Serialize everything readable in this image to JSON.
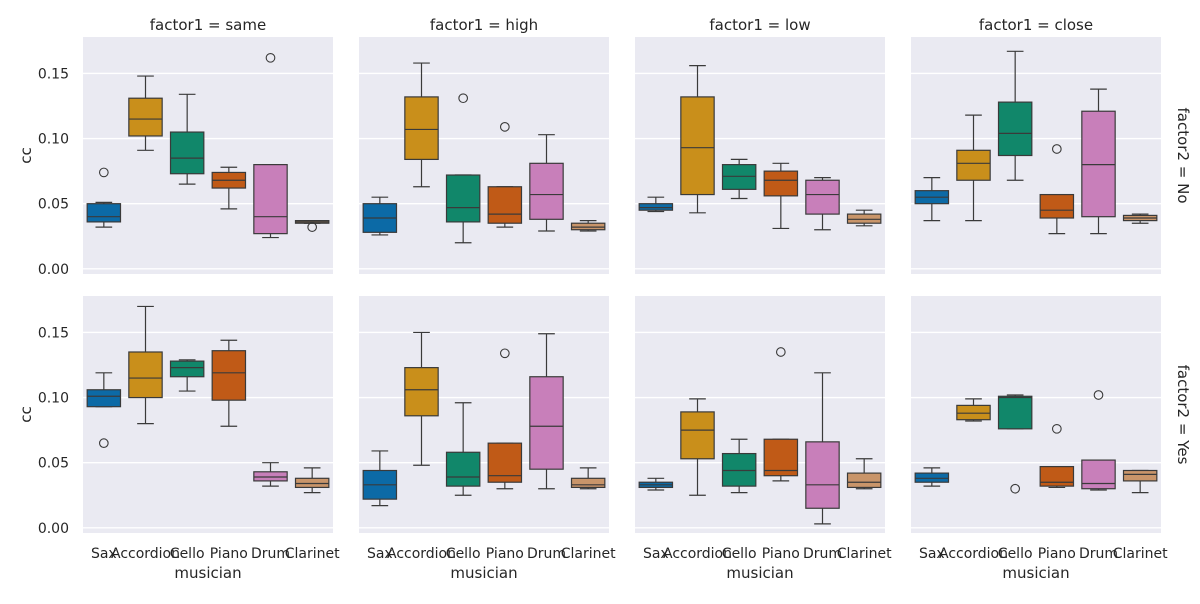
{
  "chart_data": {
    "type": "box",
    "title": "",
    "xlabel": "musician",
    "ylabel": "cc",
    "ylim": [
      -0.004,
      0.178
    ],
    "yticks": [
      0.0,
      0.05,
      0.1,
      0.15
    ],
    "ytick_labels": [
      "0.00",
      "0.05",
      "0.10",
      "0.15"
    ],
    "grid": true,
    "categories": [
      "Sax",
      "Accordion",
      "Cello",
      "Piano",
      "Drum",
      "Clarinet"
    ],
    "colors": {
      "Sax": "#0c6aa6",
      "Accordion": "#c98f1b",
      "Cello": "#11876a",
      "Piano": "#c05a17",
      "Drum": "#c87fba",
      "Clarinet": "#c9956a"
    },
    "col_facet": "factor1",
    "row_facet": "factor2",
    "panels": [
      {
        "title": "factor1 = same",
        "row_label": "",
        "show_xlabel": false,
        "boxes": [
          {
            "q1": 0.036,
            "median": 0.04,
            "q3": 0.05,
            "whislo": 0.032,
            "whishi": 0.051,
            "fliers": [
              0.074
            ]
          },
          {
            "q1": 0.102,
            "median": 0.115,
            "q3": 0.131,
            "whislo": 0.091,
            "whishi": 0.148,
            "fliers": []
          },
          {
            "q1": 0.073,
            "median": 0.085,
            "q3": 0.105,
            "whislo": 0.065,
            "whishi": 0.134,
            "fliers": []
          },
          {
            "q1": 0.062,
            "median": 0.068,
            "q3": 0.074,
            "whislo": 0.046,
            "whishi": 0.078,
            "fliers": []
          },
          {
            "q1": 0.027,
            "median": 0.04,
            "q3": 0.08,
            "whislo": 0.024,
            "whishi": 0.08,
            "fliers": [
              0.162
            ]
          },
          {
            "q1": 0.035,
            "median": 0.036,
            "q3": 0.037,
            "whislo": 0.035,
            "whishi": 0.037,
            "fliers": [
              0.032
            ]
          }
        ]
      },
      {
        "title": "factor1 = high",
        "row_label": "",
        "show_xlabel": false,
        "boxes": [
          {
            "q1": 0.028,
            "median": 0.039,
            "q3": 0.05,
            "whislo": 0.026,
            "whishi": 0.055,
            "fliers": []
          },
          {
            "q1": 0.084,
            "median": 0.107,
            "q3": 0.132,
            "whislo": 0.063,
            "whishi": 0.158,
            "fliers": []
          },
          {
            "q1": 0.036,
            "median": 0.047,
            "q3": 0.072,
            "whislo": 0.02,
            "whishi": 0.072,
            "fliers": [
              0.131
            ]
          },
          {
            "q1": 0.035,
            "median": 0.042,
            "q3": 0.063,
            "whislo": 0.032,
            "whishi": 0.063,
            "fliers": [
              0.109
            ]
          },
          {
            "q1": 0.038,
            "median": 0.057,
            "q3": 0.081,
            "whislo": 0.029,
            "whishi": 0.103,
            "fliers": []
          },
          {
            "q1": 0.03,
            "median": 0.032,
            "q3": 0.035,
            "whislo": 0.029,
            "whishi": 0.037,
            "fliers": []
          }
        ]
      },
      {
        "title": "factor1 = low",
        "row_label": "",
        "show_xlabel": false,
        "boxes": [
          {
            "q1": 0.045,
            "median": 0.047,
            "q3": 0.05,
            "whislo": 0.044,
            "whishi": 0.055,
            "fliers": []
          },
          {
            "q1": 0.057,
            "median": 0.093,
            "q3": 0.132,
            "whislo": 0.043,
            "whishi": 0.156,
            "fliers": []
          },
          {
            "q1": 0.061,
            "median": 0.071,
            "q3": 0.08,
            "whislo": 0.054,
            "whishi": 0.084,
            "fliers": []
          },
          {
            "q1": 0.056,
            "median": 0.068,
            "q3": 0.075,
            "whislo": 0.031,
            "whishi": 0.081,
            "fliers": []
          },
          {
            "q1": 0.042,
            "median": 0.057,
            "q3": 0.068,
            "whislo": 0.03,
            "whishi": 0.07,
            "fliers": []
          },
          {
            "q1": 0.035,
            "median": 0.038,
            "q3": 0.042,
            "whislo": 0.033,
            "whishi": 0.045,
            "fliers": []
          }
        ]
      },
      {
        "title": "factor1 = close",
        "row_label": "factor2 = No",
        "show_xlabel": false,
        "boxes": [
          {
            "q1": 0.05,
            "median": 0.055,
            "q3": 0.06,
            "whislo": 0.037,
            "whishi": 0.07,
            "fliers": []
          },
          {
            "q1": 0.068,
            "median": 0.081,
            "q3": 0.091,
            "whislo": 0.037,
            "whishi": 0.118,
            "fliers": []
          },
          {
            "q1": 0.087,
            "median": 0.104,
            "q3": 0.128,
            "whislo": 0.068,
            "whishi": 0.167,
            "fliers": []
          },
          {
            "q1": 0.039,
            "median": 0.045,
            "q3": 0.057,
            "whislo": 0.027,
            "whishi": 0.057,
            "fliers": [
              0.092
            ]
          },
          {
            "q1": 0.04,
            "median": 0.08,
            "q3": 0.121,
            "whislo": 0.027,
            "whishi": 0.138,
            "fliers": []
          },
          {
            "q1": 0.037,
            "median": 0.039,
            "q3": 0.041,
            "whislo": 0.035,
            "whishi": 0.042,
            "fliers": []
          }
        ]
      },
      {
        "title": "",
        "row_label": "",
        "show_xlabel": true,
        "boxes": [
          {
            "q1": 0.093,
            "median": 0.101,
            "q3": 0.106,
            "whislo": 0.093,
            "whishi": 0.119,
            "fliers": [
              0.065
            ]
          },
          {
            "q1": 0.1,
            "median": 0.115,
            "q3": 0.135,
            "whislo": 0.08,
            "whishi": 0.17,
            "fliers": []
          },
          {
            "q1": 0.116,
            "median": 0.123,
            "q3": 0.128,
            "whislo": 0.105,
            "whishi": 0.129,
            "fliers": []
          },
          {
            "q1": 0.098,
            "median": 0.119,
            "q3": 0.136,
            "whislo": 0.078,
            "whishi": 0.144,
            "fliers": []
          },
          {
            "q1": 0.036,
            "median": 0.039,
            "q3": 0.043,
            "whislo": 0.032,
            "whishi": 0.05,
            "fliers": []
          },
          {
            "q1": 0.031,
            "median": 0.034,
            "q3": 0.038,
            "whislo": 0.027,
            "whishi": 0.046,
            "fliers": []
          }
        ]
      },
      {
        "title": "",
        "row_label": "",
        "show_xlabel": true,
        "boxes": [
          {
            "q1": 0.022,
            "median": 0.033,
            "q3": 0.044,
            "whislo": 0.017,
            "whishi": 0.059,
            "fliers": []
          },
          {
            "q1": 0.086,
            "median": 0.106,
            "q3": 0.123,
            "whislo": 0.048,
            "whishi": 0.15,
            "fliers": []
          },
          {
            "q1": 0.032,
            "median": 0.039,
            "q3": 0.058,
            "whislo": 0.025,
            "whishi": 0.096,
            "fliers": []
          },
          {
            "q1": 0.035,
            "median": 0.04,
            "q3": 0.065,
            "whislo": 0.03,
            "whishi": 0.065,
            "fliers": [
              0.134
            ]
          },
          {
            "q1": 0.045,
            "median": 0.078,
            "q3": 0.116,
            "whislo": 0.03,
            "whishi": 0.149,
            "fliers": []
          },
          {
            "q1": 0.031,
            "median": 0.033,
            "q3": 0.038,
            "whislo": 0.03,
            "whishi": 0.046,
            "fliers": []
          }
        ]
      },
      {
        "title": "",
        "row_label": "",
        "show_xlabel": true,
        "boxes": [
          {
            "q1": 0.031,
            "median": 0.033,
            "q3": 0.035,
            "whislo": 0.029,
            "whishi": 0.038,
            "fliers": []
          },
          {
            "q1": 0.053,
            "median": 0.075,
            "q3": 0.089,
            "whislo": 0.025,
            "whishi": 0.099,
            "fliers": []
          },
          {
            "q1": 0.032,
            "median": 0.044,
            "q3": 0.057,
            "whislo": 0.027,
            "whishi": 0.068,
            "fliers": []
          },
          {
            "q1": 0.04,
            "median": 0.044,
            "q3": 0.068,
            "whislo": 0.036,
            "whishi": 0.068,
            "fliers": [
              0.135
            ]
          },
          {
            "q1": 0.015,
            "median": 0.033,
            "q3": 0.066,
            "whislo": 0.003,
            "whishi": 0.119,
            "fliers": []
          },
          {
            "q1": 0.031,
            "median": 0.035,
            "q3": 0.042,
            "whislo": 0.03,
            "whishi": 0.053,
            "fliers": []
          }
        ]
      },
      {
        "title": "",
        "row_label": "factor2 = Yes",
        "show_xlabel": true,
        "boxes": [
          {
            "q1": 0.035,
            "median": 0.038,
            "q3": 0.042,
            "whislo": 0.032,
            "whishi": 0.046,
            "fliers": []
          },
          {
            "q1": 0.083,
            "median": 0.088,
            "q3": 0.094,
            "whislo": 0.082,
            "whishi": 0.099,
            "fliers": []
          },
          {
            "q1": 0.076,
            "median": 0.1,
            "q3": 0.101,
            "whislo": 0.076,
            "whishi": 0.102,
            "fliers": [
              0.03
            ]
          },
          {
            "q1": 0.032,
            "median": 0.035,
            "q3": 0.047,
            "whislo": 0.031,
            "whishi": 0.047,
            "fliers": [
              0.076
            ]
          },
          {
            "q1": 0.03,
            "median": 0.034,
            "q3": 0.052,
            "whislo": 0.029,
            "whishi": 0.052,
            "fliers": [
              0.102
            ]
          },
          {
            "q1": 0.036,
            "median": 0.041,
            "q3": 0.044,
            "whislo": 0.027,
            "whishi": 0.044,
            "fliers": []
          }
        ]
      }
    ]
  }
}
